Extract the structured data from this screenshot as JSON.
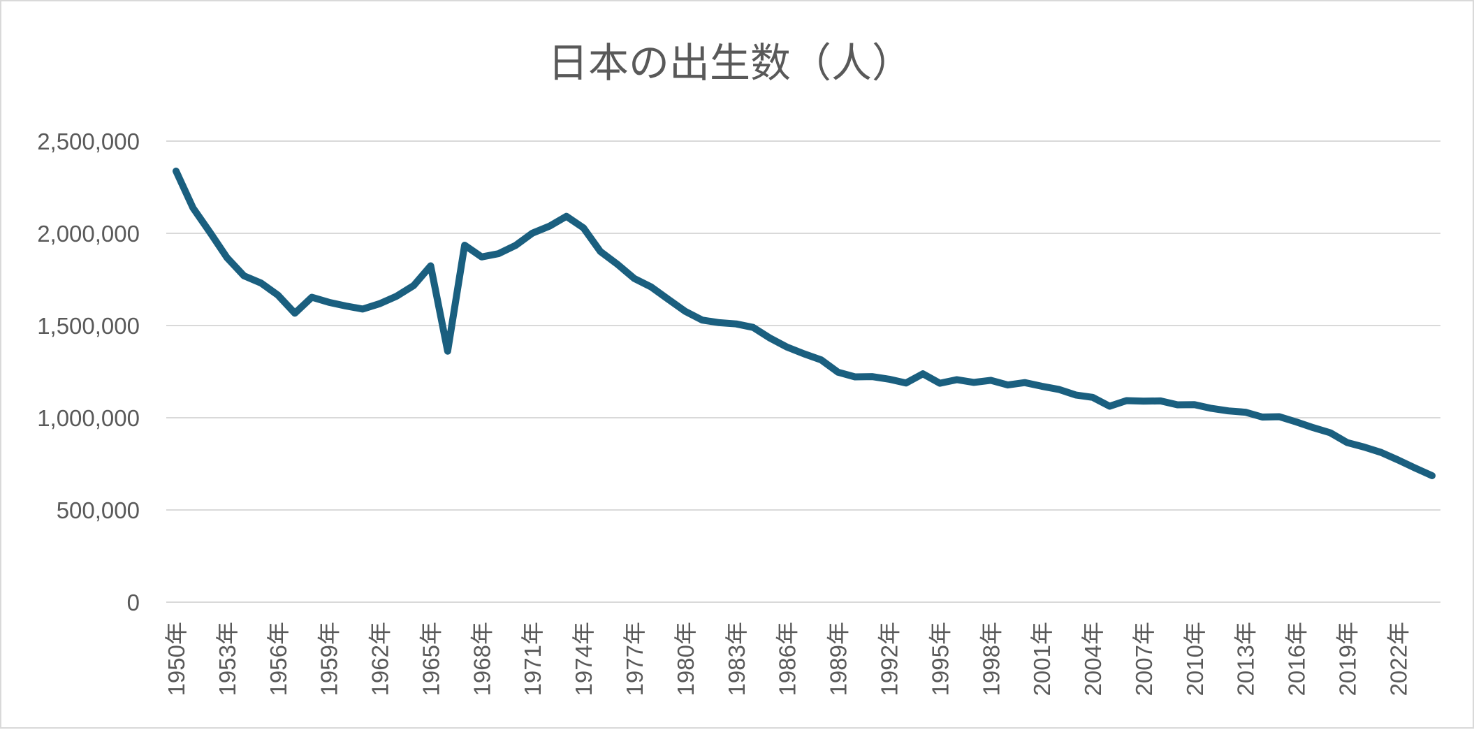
{
  "colors": {
    "series": "#1a5f7f",
    "grid": "#d9d9d9",
    "text": "#595959",
    "border": "#d9d9d9"
  },
  "chart_data": {
    "type": "line",
    "title": "日本の出生数（人）",
    "xlabel": "",
    "ylabel": "",
    "ylim": [
      0,
      2500000
    ],
    "y_ticks": [
      0,
      500000,
      1000000,
      1500000,
      2000000,
      2500000
    ],
    "y_tick_labels": [
      "0",
      "500,000",
      "1,000,000",
      "1,500,000",
      "2,000,000",
      "2,500,000"
    ],
    "x_tick_labels": [
      "1950年",
      "1953年",
      "1956年",
      "1959年",
      "1962年",
      "1965年",
      "1968年",
      "1971年",
      "1974年",
      "1977年",
      "1980年",
      "1983年",
      "1986年",
      "1989年",
      "1992年",
      "1995年",
      "1998年",
      "2001年",
      "2004年",
      "2007年",
      "2010年",
      "2013年",
      "2016年",
      "2019年",
      "2022年"
    ],
    "grid": true,
    "legend": "none",
    "categories": [
      "1950年",
      "1951年",
      "1952年",
      "1953年",
      "1954年",
      "1955年",
      "1956年",
      "1957年",
      "1958年",
      "1959年",
      "1960年",
      "1961年",
      "1962年",
      "1963年",
      "1964年",
      "1965年",
      "1966年",
      "1967年",
      "1968年",
      "1969年",
      "1970年",
      "1971年",
      "1972年",
      "1973年",
      "1974年",
      "1975年",
      "1976年",
      "1977年",
      "1978年",
      "1979年",
      "1980年",
      "1981年",
      "1982年",
      "1983年",
      "1984年",
      "1985年",
      "1986年",
      "1987年",
      "1988年",
      "1989年",
      "1990年",
      "1991年",
      "1992年",
      "1993年",
      "1994年",
      "1995年",
      "1996年",
      "1997年",
      "1998年",
      "1999年",
      "2000年",
      "2001年",
      "2002年",
      "2003年",
      "2004年",
      "2005年",
      "2006年",
      "2007年",
      "2008年",
      "2009年",
      "2010年",
      "2011年",
      "2012年",
      "2013年",
      "2014年",
      "2015年",
      "2016年",
      "2017年",
      "2018年",
      "2019年",
      "2020年",
      "2021年",
      "2022年",
      "2023年",
      "2024年"
    ],
    "series": [
      {
        "values": [
          2337507,
          2137689,
          2005162,
          1868040,
          1769580,
          1730692,
          1665278,
          1566713,
          1653469,
          1626088,
          1606041,
          1589372,
          1618616,
          1659521,
          1716761,
          1823697,
          1360974,
          1935647,
          1871839,
          1889815,
          1934239,
          2000973,
          2038682,
          2091983,
          2029989,
          1901440,
          1832617,
          1755100,
          1708643,
          1642580,
          1576889,
          1529455,
          1515392,
          1508687,
          1489780,
          1431577,
          1382946,
          1346658,
          1314006,
          1246802,
          1221585,
          1223245,
          1208989,
          1188282,
          1238328,
          1187064,
          1206555,
          1191665,
          1203147,
          1177669,
          1190547,
          1170662,
          1153855,
          1123610,
          1110721,
          1062530,
          1092674,
          1089818,
          1091156,
          1070036,
          1071304,
          1050807,
          1037232,
          1029817,
          1003609,
          1005721,
          977242,
          946146,
          918400,
          865239,
          840835,
          811622,
          770759,
          727288,
          686061
        ]
      }
    ]
  }
}
